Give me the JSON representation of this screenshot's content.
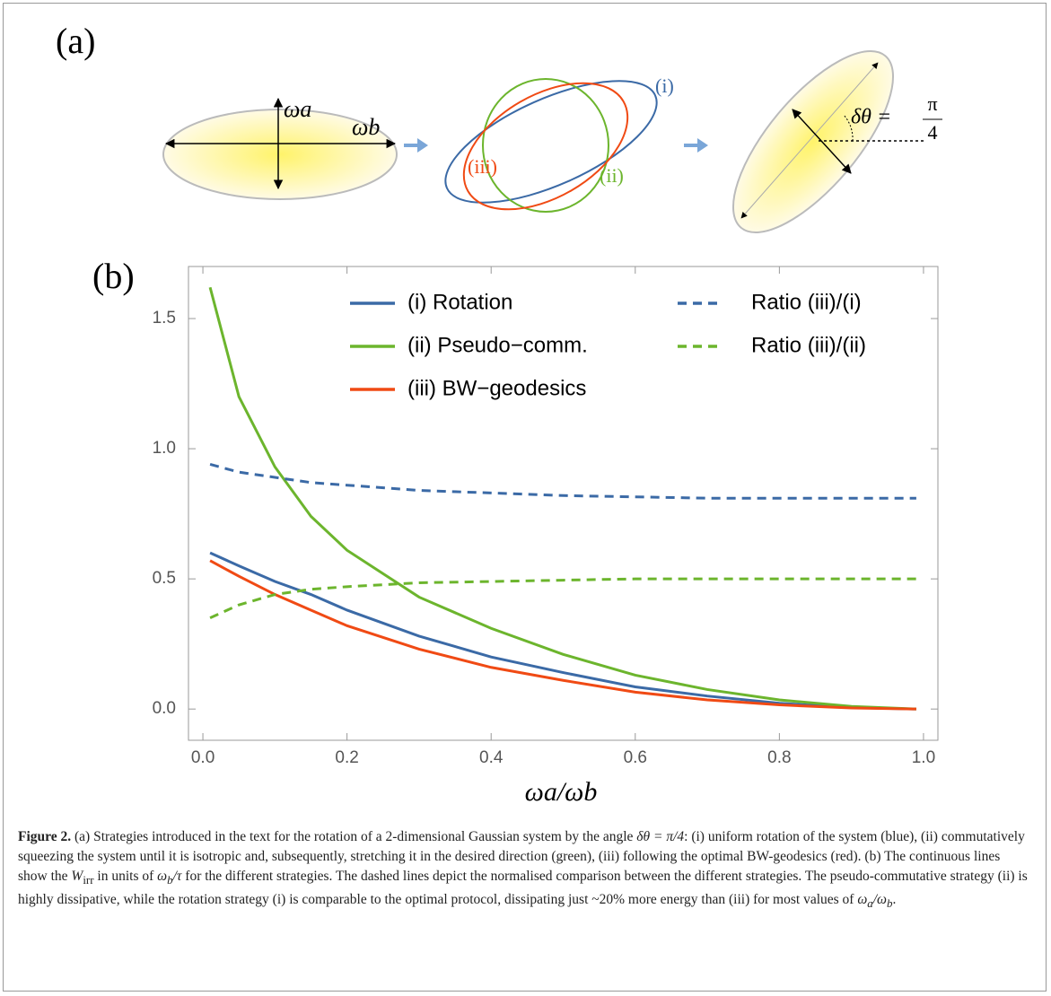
{
  "panel_a": {
    "label": "(a)",
    "omega_a": "ωa",
    "omega_b": "ωb",
    "curve_labels": [
      "(i)",
      "(ii)",
      "(iii)"
    ],
    "angle_label": "δθ =",
    "angle_num": "π",
    "angle_den": "4"
  },
  "chart_data": {
    "type": "line",
    "panel_label": "(b)",
    "x_label": "ωa/ωb",
    "x": [
      0.01,
      0.05,
      0.1,
      0.15,
      0.2,
      0.3,
      0.4,
      0.5,
      0.6,
      0.7,
      0.8,
      0.9,
      0.99
    ],
    "series": [
      {
        "name": "(i) Rotation",
        "color": "#3b6aa6",
        "dashed": false,
        "values": [
          0.6,
          0.55,
          0.49,
          0.44,
          0.38,
          0.28,
          0.2,
          0.14,
          0.085,
          0.05,
          0.022,
          0.006,
          0
        ]
      },
      {
        "name": "(ii) Pseudo−comm.",
        "color": "#6cb52d",
        "dashed": false,
        "values": [
          1.62,
          1.2,
          0.93,
          0.74,
          0.61,
          0.43,
          0.31,
          0.21,
          0.13,
          0.075,
          0.035,
          0.01,
          0
        ]
      },
      {
        "name": "(iii) BW−geodesics",
        "color": "#f04a14",
        "dashed": false,
        "values": [
          0.57,
          0.51,
          0.44,
          0.38,
          0.32,
          0.23,
          0.16,
          0.11,
          0.065,
          0.035,
          0.016,
          0.004,
          0
        ]
      },
      {
        "name": "Ratio (iii)/(i)",
        "color": "#3b6aa6",
        "dashed": true,
        "values": [
          0.94,
          0.91,
          0.89,
          0.87,
          0.86,
          0.84,
          0.83,
          0.82,
          0.815,
          0.81,
          0.81,
          0.81,
          0.81
        ]
      },
      {
        "name": "Ratio (iii)/(ii)",
        "color": "#6cb52d",
        "dashed": true,
        "values": [
          0.35,
          0.4,
          0.44,
          0.46,
          0.47,
          0.485,
          0.49,
          0.495,
          0.5,
          0.5,
          0.5,
          0.5,
          0.5
        ]
      }
    ],
    "xlim": [
      -0.02,
      1.02
    ],
    "ylim": [
      -0.12,
      1.7
    ],
    "xticks": [
      {
        "value": 0,
        "label": "0.0"
      },
      0.2,
      0.4,
      0.6,
      0.8,
      {
        "value": 1,
        "label": "1.0"
      }
    ],
    "yticks": [
      {
        "value": 0,
        "label": "0.0"
      },
      0.5,
      {
        "value": 1,
        "label": "1.0"
      },
      1.5
    ],
    "legend": "upper-center"
  },
  "caption": {
    "parts": [
      "Figure 2.",
      " (a) Strategies introduced in the text for the rotation of a 2-dimensional Gaussian system by the angle ",
      "δθ = π/4",
      ": (i) uniform rotation of the system (blue), (ii) commutatively squeezing the system until it is isotropic and, subsequently, stretching it in the desired direction (green), (iii) following the optimal BW-geodesics (red). (b) The continuous lines show the ",
      "W",
      "irr",
      " in units of ",
      "ω",
      "b",
      "/τ",
      " for the different strategies. The dashed lines depict the normalised comparison between the different strategies. The pseudo-commutative strategy (ii) is highly dissipative, while the rotation strategy (i) is comparable to the optimal protocol, dissipating just ~20% more energy than (iii) for most values of ",
      "ω",
      "a",
      "/ω",
      "b",
      "."
    ]
  }
}
